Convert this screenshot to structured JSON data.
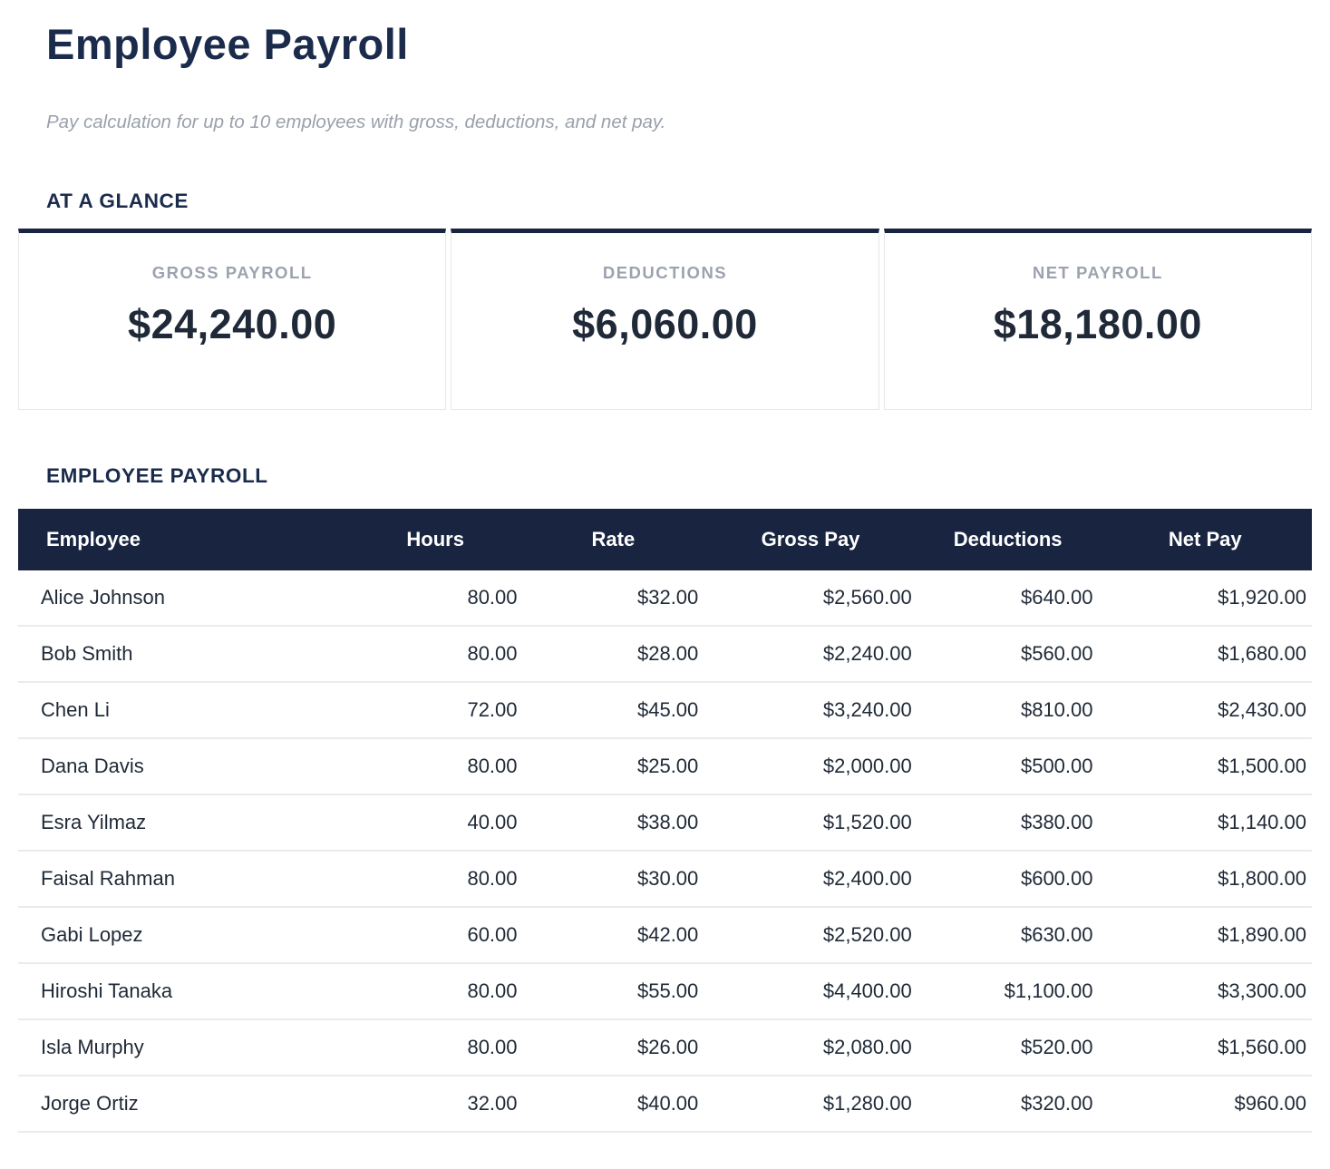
{
  "page": {
    "title": "Employee Payroll",
    "subtitle": "Pay calculation for up to 10 employees with gross, deductions, and net pay."
  },
  "glance": {
    "heading": "AT A GLANCE",
    "cards": [
      {
        "label": "GROSS PAYROLL",
        "value": "$24,240.00"
      },
      {
        "label": "DEDUCTIONS",
        "value": "$6,060.00"
      },
      {
        "label": "NET PAYROLL",
        "value": "$18,180.00"
      }
    ]
  },
  "payroll_table": {
    "heading": "EMPLOYEE PAYROLL",
    "columns": [
      "Employee",
      "Hours",
      "Rate",
      "Gross Pay",
      "Deductions",
      "Net Pay"
    ],
    "rows": [
      [
        "Alice Johnson",
        "80.00",
        "$32.00",
        "$2,560.00",
        "$640.00",
        "$1,920.00"
      ],
      [
        "Bob Smith",
        "80.00",
        "$28.00",
        "$2,240.00",
        "$560.00",
        "$1,680.00"
      ],
      [
        "Chen Li",
        "72.00",
        "$45.00",
        "$3,240.00",
        "$810.00",
        "$2,430.00"
      ],
      [
        "Dana Davis",
        "80.00",
        "$25.00",
        "$2,000.00",
        "$500.00",
        "$1,500.00"
      ],
      [
        "Esra Yilmaz",
        "40.00",
        "$38.00",
        "$1,520.00",
        "$380.00",
        "$1,140.00"
      ],
      [
        "Faisal Rahman",
        "80.00",
        "$30.00",
        "$2,400.00",
        "$600.00",
        "$1,800.00"
      ],
      [
        "Gabi Lopez",
        "60.00",
        "$42.00",
        "$2,520.00",
        "$630.00",
        "$1,890.00"
      ],
      [
        "Hiroshi Tanaka",
        "80.00",
        "$55.00",
        "$4,400.00",
        "$1,100.00",
        "$3,300.00"
      ],
      [
        "Isla Murphy",
        "80.00",
        "$26.00",
        "$2,080.00",
        "$520.00",
        "$1,560.00"
      ],
      [
        "Jorge Ortiz",
        "32.00",
        "$40.00",
        "$1,280.00",
        "$320.00",
        "$960.00"
      ]
    ]
  },
  "colors": {
    "navy_header_bg": "#192540",
    "heading_navy": "#1b2b4c",
    "label_gray": "#9ca3af",
    "subtitle_gray": "#9aa1ab",
    "value_dark": "#1f2937",
    "border_light": "#e5e7eb",
    "row_border": "#e9ebee"
  }
}
